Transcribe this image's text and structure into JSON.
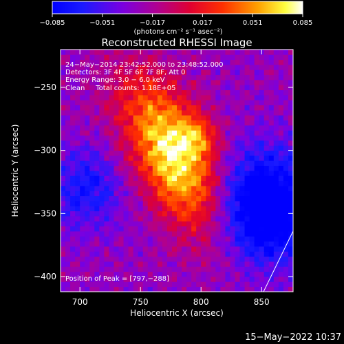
{
  "colorbar": {
    "ticks": [
      "−0.085",
      "−0.051",
      "−0.017",
      "0.017",
      "0.051",
      "0.085"
    ],
    "units": "(photons cm⁻² s⁻¹ asec⁻²)",
    "min": -0.085,
    "max": 0.085
  },
  "header": {
    "line1": "24−May−2014 23:42:52.000 to 23:48:52.000",
    "line2": "Detectors: 3F 4F 5F 6F 7F 8F, Att 0",
    "line3": "Energy Range: 3.0 − 6.0 keV",
    "line4": "Clean     Total counts: 1.18E+05"
  },
  "peak_label": "Position of Peak = [797,−288]",
  "footer_timestamp": "15−May−2022 10:37",
  "chart_data": {
    "type": "heatmap",
    "title": "Reconstructed RHESSI Image",
    "xlabel": "Heliocentric X (arcsec)",
    "ylabel": "Heliocentric Y (arcsec)",
    "xlim": [
      684,
      876
    ],
    "ylim": [
      -412,
      -220
    ],
    "xticks": [
      700,
      750,
      800,
      850
    ],
    "xtick_labels": [
      "700",
      "750",
      "800",
      "850"
    ],
    "yticks": [
      -250,
      -300,
      -350,
      -400
    ],
    "ytick_labels": [
      "−250",
      "−300",
      "−350",
      "−400"
    ],
    "peak_position": [
      797,
      -288
    ],
    "value_range": [
      -0.085,
      0.085
    ],
    "colormap": "blue-purple-red-yellow-white"
  }
}
